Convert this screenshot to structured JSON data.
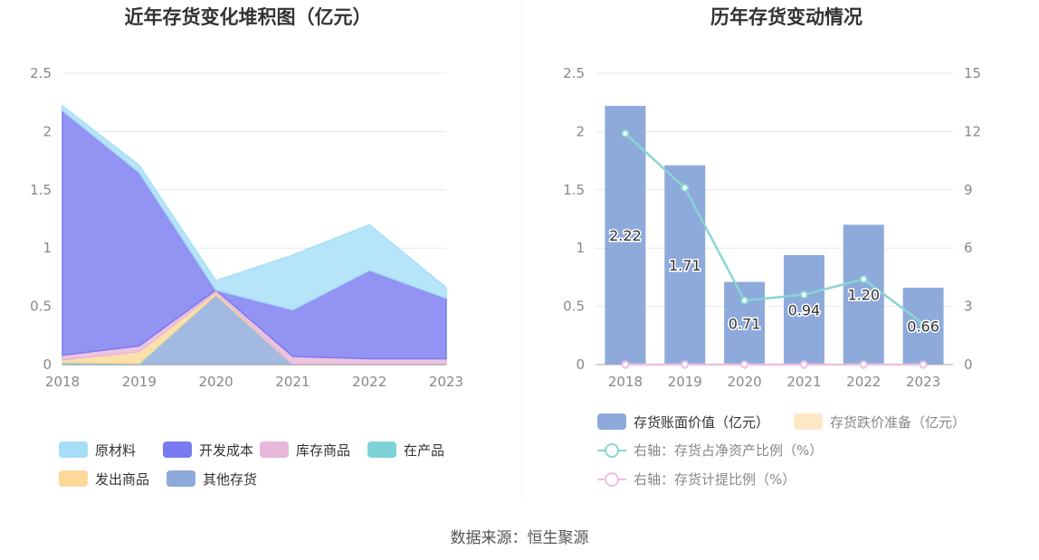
{
  "source_label": "数据来源：恒生聚源",
  "chart_data": [
    {
      "type": "area",
      "stacked": true,
      "title": "近年存货变化堆积图（亿元）",
      "x": [
        "2018",
        "2019",
        "2020",
        "2021",
        "2022",
        "2023"
      ],
      "ylim": [
        0,
        2.5
      ],
      "yticks": [
        "0",
        "0.5",
        "1",
        "1.5",
        "2",
        "2.5"
      ],
      "grid": true,
      "legend_position": "bottom",
      "series": [
        {
          "name": "其他存货",
          "color": "#8eaadb",
          "values": [
            0,
            0,
            0.6,
            0,
            0,
            0
          ]
        },
        {
          "name": "在产品",
          "color": "#7fd3d8",
          "values": [
            0.02,
            0.01,
            0,
            0,
            0,
            0
          ]
        },
        {
          "name": "发出商品",
          "color": "#fdd898",
          "values": [
            0.02,
            0.1,
            0.02,
            0,
            0,
            0
          ]
        },
        {
          "name": "库存商品",
          "color": "#e8b7d9",
          "values": [
            0.04,
            0.05,
            0.02,
            0.07,
            0.05,
            0.05
          ]
        },
        {
          "name": "开发成本",
          "color": "#7b7bf0",
          "values": [
            2.1,
            1.49,
            0,
            0.4,
            0.76,
            0.52
          ]
        },
        {
          "name": "原材料",
          "color": "#a6def8",
          "values": [
            0.04,
            0.06,
            0.08,
            0.47,
            0.39,
            0.09
          ]
        }
      ],
      "legend_order": [
        "原材料",
        "开发成本",
        "库存商品",
        "在产品",
        "发出商品",
        "其他存货"
      ]
    },
    {
      "type": "bar",
      "title": "历年存货变动情况",
      "categories": [
        "2018",
        "2019",
        "2020",
        "2021",
        "2022",
        "2023"
      ],
      "ylim": [
        0,
        2.5
      ],
      "yticks": [
        "0",
        "0.5",
        "1",
        "1.5",
        "2",
        "2.5"
      ],
      "y2lim": [
        0,
        15
      ],
      "y2ticks": [
        "0",
        "3",
        "6",
        "9",
        "12",
        "15"
      ],
      "grid": true,
      "legend_position": "bottom",
      "series": [
        {
          "name": "存货账面价值（亿元）",
          "kind": "bar",
          "axis": "left",
          "color": "#8eaadb",
          "values": [
            2.22,
            1.71,
            0.71,
            0.94,
            1.2,
            0.66
          ],
          "labels": [
            "2.22",
            "1.71",
            "0.71",
            "0.94",
            "1.20",
            "0.66"
          ]
        },
        {
          "name": "存货跌价准备（亿元）",
          "kind": "bar",
          "axis": "left",
          "color": "#fde8c6",
          "values": [
            0,
            0,
            0,
            0,
            0,
            0
          ]
        },
        {
          "name": "右轴：存货占净资产比例（%）",
          "kind": "line",
          "axis": "right",
          "color": "#8ad5d5",
          "values": [
            11.9,
            9.1,
            3.3,
            3.6,
            4.4,
            2.1
          ]
        },
        {
          "name": "右轴：存货计提比例（%）",
          "kind": "line",
          "axis": "right",
          "color": "#eec0e0",
          "values": [
            0,
            0,
            0,
            0,
            0,
            0
          ]
        }
      ]
    }
  ]
}
